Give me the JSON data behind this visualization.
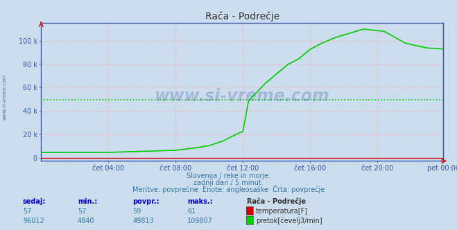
{
  "title": "Rača - Podrečje",
  "bg_color": "#ccdded",
  "plot_bg_color": "#ccdded",
  "grid_color": "#ffaaaa",
  "x_tick_labels": [
    "čet 04:00",
    "čet 08:00",
    "čet 12:00",
    "čet 16:00",
    "čet 20:00",
    "pet 00:00"
  ],
  "x_tick_positions": [
    48,
    96,
    144,
    192,
    240,
    287
  ],
  "y_ticks": [
    0,
    20000,
    40000,
    60000,
    80000,
    100000
  ],
  "y_tick_labels": [
    "0",
    "20 k",
    "40 k",
    "60 k",
    "80 k",
    "100 k"
  ],
  "y_max": 115000,
  "avg_line_y": 49813,
  "avg_line_color": "#00cc00",
  "temp_line_color": "#cc0000",
  "flow_line_color": "#00cc00",
  "temp_value": 57,
  "temp_min": 57,
  "temp_avg": 59,
  "temp_max": 61,
  "flow_value": 96012,
  "flow_min": 4840,
  "flow_avg": 49813,
  "flow_max": 109807,
  "watermark": "www.si-vreme.com",
  "subtitle1": "Slovenija / reke in morje.",
  "subtitle2": "zadnji dan / 5 minut.",
  "subtitle3": "Meritve: povprečne  Enote: angleosaške  Črta: povprečje",
  "legend_station": "Rača - Podrečje",
  "legend_temp": "temperatura[F]",
  "legend_flow": "pretok[čevelj3/min]",
  "label_sedaj": "sedaj:",
  "label_min": "min.:",
  "label_povpr": "povpr.:",
  "label_maks": "maks.:",
  "temp_color_box": "#cc0000",
  "flow_color_box": "#00cc00",
  "spine_color": "#3355aa",
  "tick_color": "#3355aa",
  "title_color": "#333333",
  "text_color": "#3377aa",
  "watermark_color": "#4466aa",
  "label_color": "#0000cc"
}
